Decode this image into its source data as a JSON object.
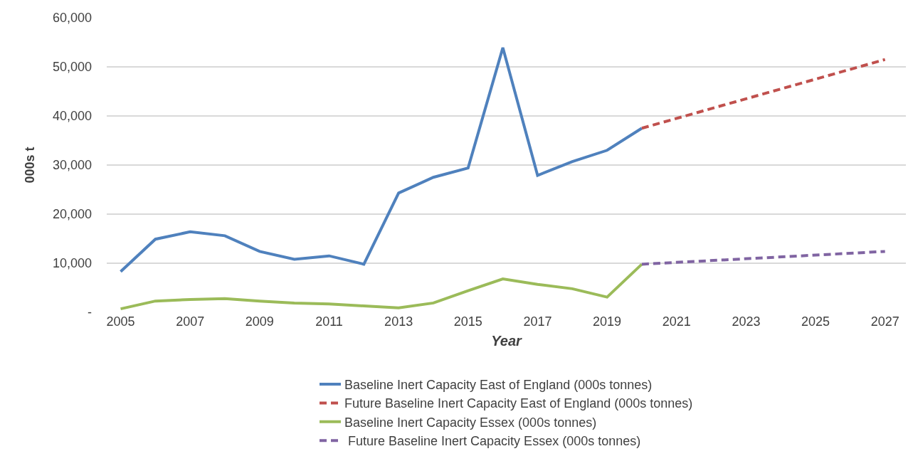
{
  "chart_data": {
    "type": "line",
    "xlabel": "Year",
    "ylabel": "000s t",
    "xlim": [
      2004.6,
      2027.6
    ],
    "xticks": [
      2005,
      2007,
      2009,
      2011,
      2013,
      2015,
      2017,
      2019,
      2021,
      2023,
      2025,
      2027
    ],
    "ylim": [
      0,
      60000
    ],
    "yticks": [
      {
        "value": 0,
        "label": "-"
      },
      {
        "value": 10000,
        "label": "10,000"
      },
      {
        "value": 20000,
        "label": "20,000"
      },
      {
        "value": 30000,
        "label": "30,000"
      },
      {
        "value": 40000,
        "label": "40,000"
      },
      {
        "value": 50000,
        "label": "50,000"
      },
      {
        "value": 60000,
        "label": "60,000"
      }
    ],
    "grid": "y",
    "legend": "bottom",
    "marker": "none",
    "series": [
      {
        "name": "Baseline Inert Capacity East of England (000s tonnes)",
        "color": "#4f81bd",
        "line_style": "solid",
        "x": [
          2005,
          2006,
          2007,
          2008,
          2009,
          2010,
          2011,
          2012,
          2013,
          2014,
          2015,
          2016,
          2017,
          2018,
          2019,
          2020
        ],
        "values": [
          8300,
          14900,
          16400,
          15600,
          12400,
          10800,
          11500,
          9800,
          24300,
          27500,
          29400,
          53900,
          27900,
          30700,
          33000,
          37500
        ]
      },
      {
        "name": "Future Baseline Inert Capacity East of England (000s tonnes)",
        "color": "#c0504d",
        "line_style": "dashed",
        "x": [
          2020,
          2027
        ],
        "values": [
          37500,
          51500
        ]
      },
      {
        "name": "Baseline Inert Capacity Essex (000s tonnes)",
        "color": "#9bbb59",
        "line_style": "solid",
        "x": [
          2005,
          2006,
          2007,
          2008,
          2009,
          2010,
          2011,
          2012,
          2013,
          2014,
          2015,
          2016,
          2017,
          2018,
          2019,
          2020
        ],
        "values": [
          700,
          2300,
          2600,
          2800,
          2300,
          1900,
          1700,
          1300,
          900,
          1900,
          4400,
          6800,
          5700,
          4800,
          3100,
          9800
        ]
      },
      {
        "name": " Future Baseline Inert Capacity Essex (000s tonnes)",
        "color": "#8064a2",
        "line_style": "dashed",
        "x": [
          2020,
          2027
        ],
        "values": [
          9800,
          12400
        ]
      }
    ]
  }
}
